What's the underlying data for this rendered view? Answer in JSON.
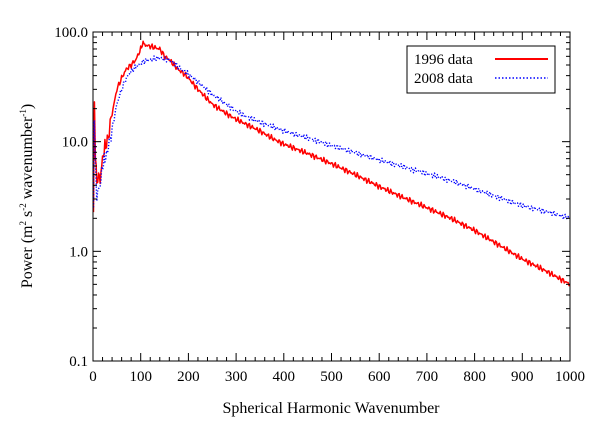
{
  "chart_data": {
    "type": "line",
    "title": "",
    "xlabel": "Spherical Harmonic Wavenumber",
    "ylabel_parts": [
      "Power (m",
      "2",
      " s",
      "-2",
      " wavenumber",
      "-1",
      ")"
    ],
    "xlim": [
      0,
      1000
    ],
    "ylim": [
      0.1,
      100
    ],
    "yscale": "log",
    "grid": false,
    "legend_position": "top-right",
    "x_ticks": [
      {
        "value": 0,
        "label": "0"
      },
      {
        "value": 100,
        "label": "100"
      },
      {
        "value": 200,
        "label": "200"
      },
      {
        "value": 300,
        "label": "300"
      },
      {
        "value": 400,
        "label": "400"
      },
      {
        "value": 500,
        "label": "500"
      },
      {
        "value": 600,
        "label": "600"
      },
      {
        "value": 700,
        "label": "700"
      },
      {
        "value": 800,
        "label": "800"
      },
      {
        "value": 900,
        "label": "900"
      },
      {
        "value": 1000,
        "label": "1000"
      }
    ],
    "y_ticks": [
      {
        "value": 0.1,
        "label": "0.1"
      },
      {
        "value": 1,
        "label": "1.0"
      },
      {
        "value": 10,
        "label": "10.0"
      },
      {
        "value": 100,
        "label": "100.0"
      }
    ],
    "series": [
      {
        "name": "1996 data",
        "color": "#ff0000",
        "style": "solid",
        "x": [
          1,
          2,
          3,
          5,
          8,
          10,
          15,
          20,
          25,
          30,
          40,
          50,
          60,
          70,
          80,
          90,
          100,
          105,
          110,
          120,
          130,
          140,
          150,
          160,
          170,
          180,
          190,
          200,
          220,
          250,
          280,
          300,
          320,
          350,
          380,
          400,
          450,
          500,
          550,
          600,
          650,
          700,
          750,
          800,
          850,
          900,
          950,
          1000
        ],
        "y": [
          2.0,
          12,
          22,
          8,
          4,
          5,
          4.5,
          7,
          9,
          10,
          18,
          30,
          38,
          46,
          50,
          56,
          70,
          80,
          76,
          74,
          72,
          70,
          60,
          56,
          50,
          45,
          42,
          38,
          30,
          22,
          18,
          16,
          14.5,
          12.5,
          10.5,
          9.5,
          7.8,
          6.3,
          5.0,
          3.9,
          3.1,
          2.5,
          2.0,
          1.55,
          1.15,
          0.85,
          0.66,
          0.5
        ]
      },
      {
        "name": "2008 data",
        "color": "#0000ff",
        "style": "dotted",
        "x": [
          1,
          2,
          3,
          5,
          8,
          10,
          15,
          20,
          25,
          30,
          40,
          50,
          60,
          70,
          80,
          90,
          100,
          110,
          120,
          130,
          140,
          150,
          160,
          170,
          180,
          190,
          200,
          220,
          250,
          280,
          300,
          320,
          350,
          380,
          400,
          450,
          500,
          550,
          600,
          650,
          700,
          750,
          800,
          850,
          900,
          950,
          1000
        ],
        "y": [
          2.5,
          14,
          18,
          6,
          3,
          3.5,
          4,
          6,
          7,
          8,
          13,
          22,
          30,
          38,
          44,
          48,
          52,
          55,
          56,
          57,
          58,
          57,
          55,
          52,
          48,
          44,
          41,
          35,
          27,
          22,
          19,
          17,
          15,
          13.5,
          12.5,
          10.8,
          9.2,
          7.9,
          6.8,
          5.9,
          5.1,
          4.4,
          3.7,
          3.1,
          2.6,
          2.3,
          2.0
        ]
      }
    ]
  }
}
